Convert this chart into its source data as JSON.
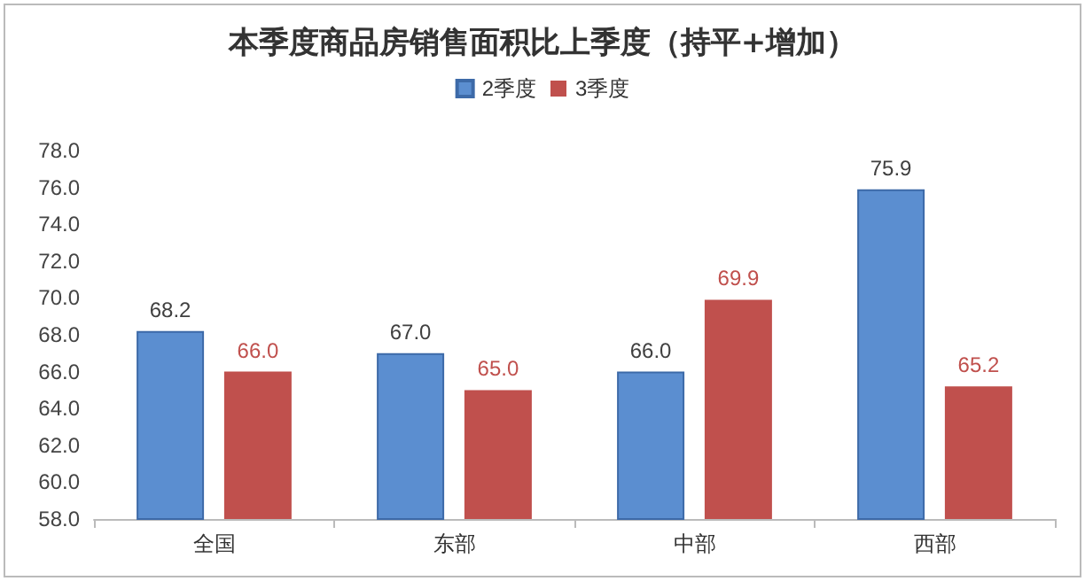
{
  "chart_data": {
    "type": "bar",
    "title": "本季度商品房销售面积比上季度（持平+增加）",
    "categories": [
      "全国",
      "东部",
      "中部",
      "西部"
    ],
    "series": [
      {
        "name": "2季度",
        "color": "#5b8ed0",
        "values": [
          68.2,
          67.0,
          66.0,
          75.9
        ],
        "value_labels": [
          "68.2",
          "67.0",
          "66.0",
          "75.9"
        ]
      },
      {
        "name": "3季度",
        "color": "#c0504d",
        "values": [
          66.0,
          65.0,
          69.9,
          65.2
        ],
        "value_labels": [
          "66.0",
          "65.0",
          "69.9",
          "65.2"
        ]
      }
    ],
    "ylim": [
      58,
      78
    ],
    "yticks": [
      {
        "value": 58,
        "label": "58.0"
      },
      {
        "value": 60,
        "label": "60.0"
      },
      {
        "value": 62,
        "label": "62.0"
      },
      {
        "value": 64,
        "label": "64.0"
      },
      {
        "value": 66,
        "label": "66.0"
      },
      {
        "value": 68,
        "label": "68.0"
      },
      {
        "value": 70,
        "label": "70.0"
      },
      {
        "value": 72,
        "label": "72.0"
      },
      {
        "value": 74,
        "label": "74.0"
      },
      {
        "value": 76,
        "label": "76.0"
      },
      {
        "value": 78,
        "label": "78.0"
      }
    ],
    "grid": false,
    "legend": "top"
  }
}
